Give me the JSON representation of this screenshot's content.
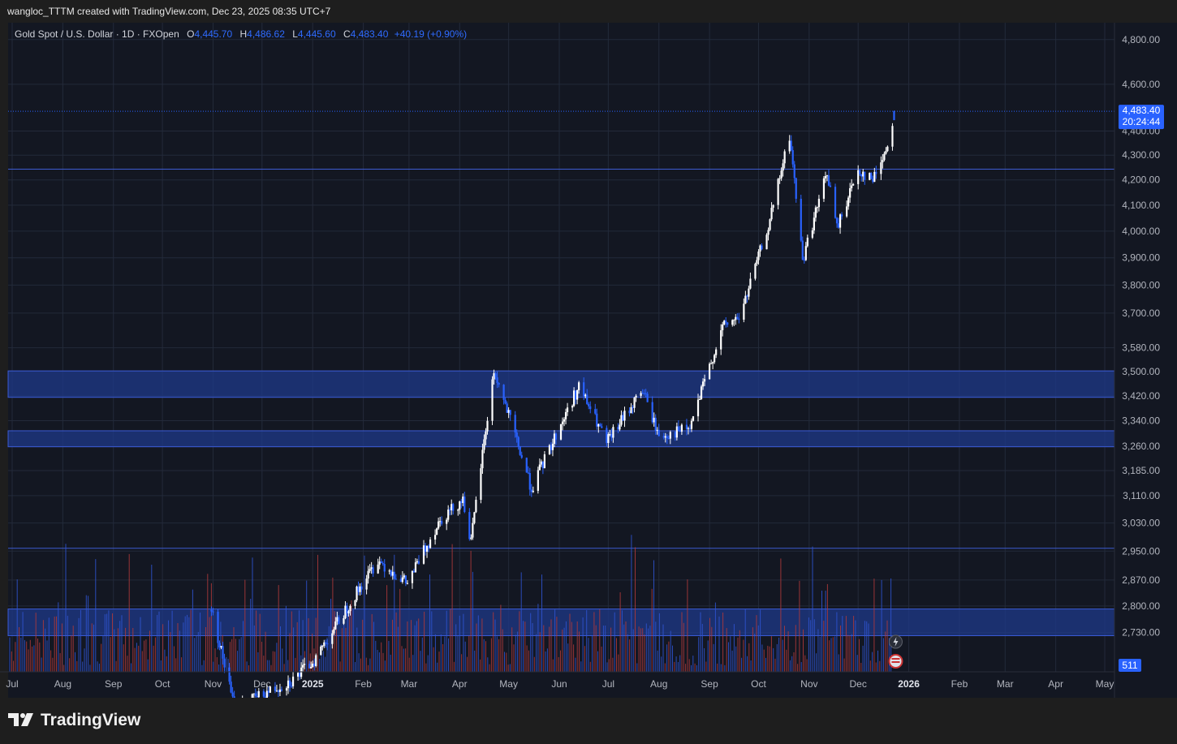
{
  "header": {
    "attribution": "wangloc_TTTM created with TradingView.com, Dec 23, 2025 08:35 UTC+7"
  },
  "legend": {
    "symbol": "Gold Spot / U.S. Dollar · 1D · FXOpen",
    "open_label": "O",
    "open": "4,445.70",
    "high_label": "H",
    "high": "4,486.62",
    "low_label": "L",
    "low": "4,445.60",
    "close_label": "C",
    "close": "4,483.40",
    "change": "+40.19 (+0.90%)"
  },
  "price_badge": {
    "price": "4,483.40",
    "countdown": "20:24:44"
  },
  "volume_badge": "511",
  "brand": "TradingView",
  "colors": {
    "background": "#131722",
    "up": "#ffffff",
    "down": "#2962ff",
    "zone_fill": "#1f3a8a",
    "grid": "#232a3a",
    "text": "#b2b5be",
    "accent": "#2962ff"
  },
  "chart_data": {
    "type": "candlestick",
    "symbol": "Gold Spot / U.S. Dollar",
    "interval": "1D",
    "x_ticks": [
      "Jul",
      "Aug",
      "Sep",
      "Oct",
      "Nov",
      "Dec",
      "2025",
      "Feb",
      "Mar",
      "Apr",
      "May",
      "Jun",
      "Jul",
      "Aug",
      "Sep",
      "Oct",
      "Nov",
      "Dec",
      "2026",
      "Feb",
      "Mar",
      "Apr",
      "May"
    ],
    "y_ticks": [
      "4,800.00",
      "4,600.00",
      "4,400.00",
      "4,300.00",
      "4,200.00",
      "4,100.00",
      "4,000.00",
      "3,900.00",
      "3,800.00",
      "3,700.00",
      "3,580.00",
      "3,500.00",
      "3,420.00",
      "3,340.00",
      "3,260.00",
      "3,185.00",
      "3,110.00",
      "3,030.00",
      "2,950.00",
      "2,870.00",
      "2,800.00",
      "2,730.00"
    ],
    "y_scale": "log",
    "ylim": [
      2700,
      4870
    ],
    "last_price": 4483.4,
    "horizontal_lines": [
      4243,
      2958
    ],
    "zones": [
      {
        "low": 3415,
        "high": 3502
      },
      {
        "low": 3258,
        "high": 3308
      },
      {
        "low": 2722,
        "high": 2792
      }
    ],
    "ohlc_keypoints": [
      {
        "date": "2024-10-31",
        "price": 2790
      },
      {
        "date": "2024-11-14",
        "price": 2540
      },
      {
        "date": "2024-12-20",
        "price": 2610
      },
      {
        "date": "2025-01-02",
        "price": 2660
      },
      {
        "date": "2025-02-10",
        "price": 2925
      },
      {
        "date": "2025-02-28",
        "price": 2860
      },
      {
        "date": "2025-03-20",
        "price": 3040
      },
      {
        "date": "2025-04-03",
        "price": 3100
      },
      {
        "date": "2025-04-08",
        "price": 2975
      },
      {
        "date": "2025-04-22",
        "price": 3500
      },
      {
        "date": "2025-05-15",
        "price": 3130
      },
      {
        "date": "2025-06-13",
        "price": 3450
      },
      {
        "date": "2025-06-30",
        "price": 3270
      },
      {
        "date": "2025-07-22",
        "price": 3440
      },
      {
        "date": "2025-08-01",
        "price": 3290
      },
      {
        "date": "2025-08-20",
        "price": 3315
      },
      {
        "date": "2025-09-09",
        "price": 3650
      },
      {
        "date": "2025-09-20",
        "price": 3690
      },
      {
        "date": "2025-10-08",
        "price": 4040
      },
      {
        "date": "2025-10-20",
        "price": 4380
      },
      {
        "date": "2025-10-28",
        "price": 3890
      },
      {
        "date": "2025-11-12",
        "price": 4230
      },
      {
        "date": "2025-11-18",
        "price": 4010
      },
      {
        "date": "2025-12-01",
        "price": 4240
      },
      {
        "date": "2025-12-10",
        "price": 4200
      },
      {
        "date": "2025-12-19",
        "price": 4340
      },
      {
        "date": "2025-12-23",
        "price": 4483.4
      }
    ],
    "volume_last": 511
  }
}
